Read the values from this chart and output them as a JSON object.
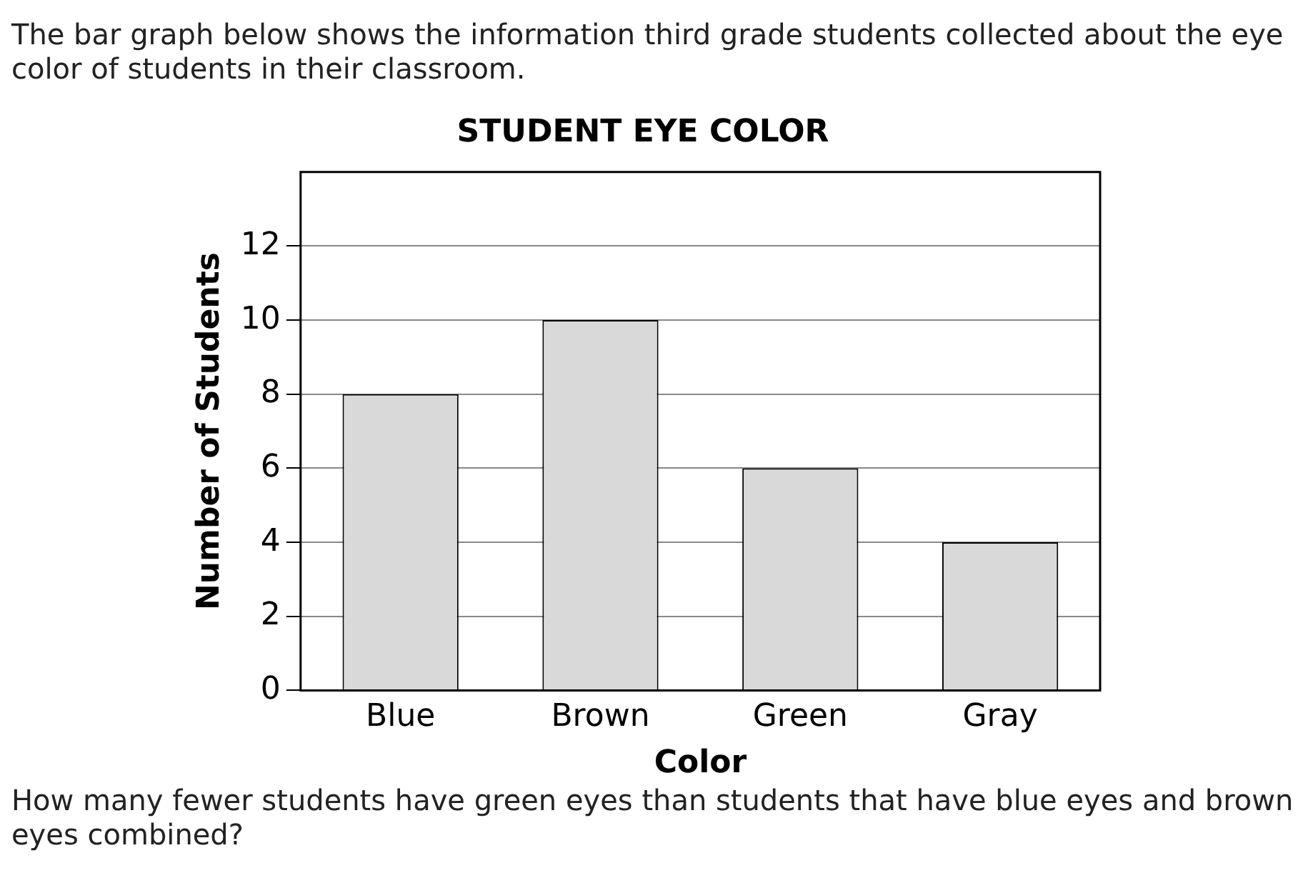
{
  "chart_data": {
    "type": "bar",
    "title": "STUDENT EYE COLOR",
    "xlabel": "Color",
    "ylabel": "Number of Students",
    "categories": [
      "Blue",
      "Brown",
      "Green",
      "Gray"
    ],
    "values": [
      8,
      10,
      6,
      4
    ],
    "color": "#d9d9d9",
    "ylim": [
      0,
      14
    ],
    "yticks": [
      0,
      2,
      4,
      6,
      8,
      10,
      12
    ],
    "grid": "y",
    "legend": false,
    "annotations": [
      "The bar graph below shows the information third grade students collected about the eye color of students in their classroom.",
      "How many fewer students have green eyes than students that have blue eyes and brown eyes combined?"
    ]
  }
}
